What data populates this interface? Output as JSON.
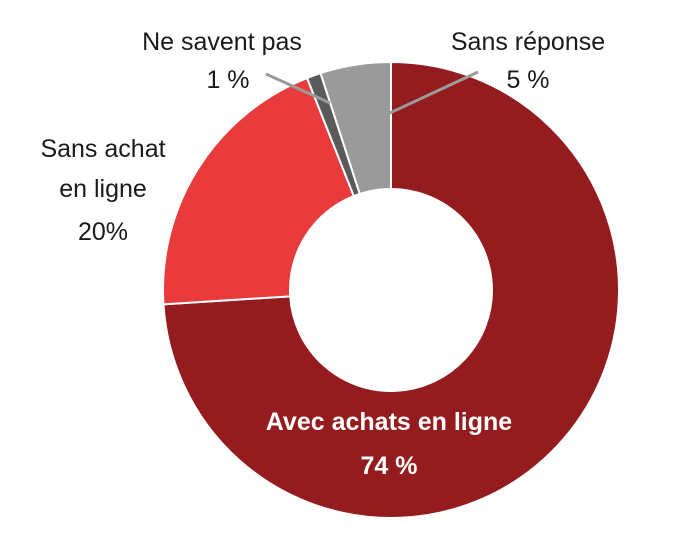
{
  "chart_data": {
    "type": "pie",
    "subtype": "donut",
    "title": "",
    "slices": [
      {
        "name": "Avec achats en ligne",
        "value": 74,
        "value_label": "74 %",
        "color": "#941b1e",
        "label_lines": [
          "Avec achats en ligne"
        ]
      },
      {
        "name": "Sans achat en ligne",
        "value": 20,
        "value_label": "20%",
        "color": "#e93a3c",
        "label_lines": [
          "Sans achat",
          "en ligne"
        ]
      },
      {
        "name": "Ne savent pas",
        "value": 1,
        "value_label": "1 %",
        "color": "#5a5a5a",
        "label_lines": [
          "Ne savent pas"
        ]
      },
      {
        "name": "Sans réponse",
        "value": 5,
        "value_label": "5 %",
        "color": "#9a9a9a",
        "label_lines": [
          "Sans réponse"
        ]
      }
    ],
    "start_angle_deg": 0,
    "direction": "clockwise",
    "legend": "none"
  }
}
